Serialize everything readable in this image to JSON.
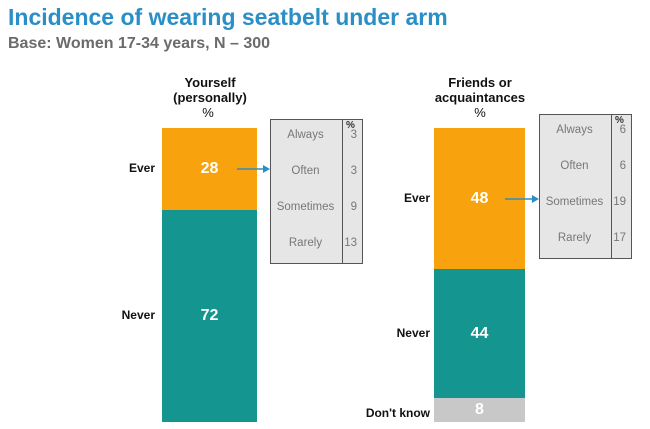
{
  "header": {
    "title": "Incidence of wearing seatbelt under arm",
    "subtitle": "Base: Women 17-34 years, N – 300"
  },
  "colors": {
    "ever": "#f8a30e",
    "never": "#14958f",
    "dont_know": "#c8c8c8",
    "title": "#2a8fc6",
    "arrow": "#2a8fc6"
  },
  "chart_data": [
    {
      "type": "bar",
      "stacked": true,
      "title": "Yourself (personally)",
      "title_lines": [
        "Yourself",
        "(personally)"
      ],
      "unit": "%",
      "categories": [
        "Ever",
        "Never"
      ],
      "values": [
        28,
        72
      ],
      "labels": [
        "28",
        "72"
      ],
      "breakdown": {
        "of": "Ever",
        "unit": "%",
        "categories": [
          "Always",
          "Often",
          "Sometimes",
          "Rarely"
        ],
        "values": [
          3,
          3,
          9,
          13
        ]
      }
    },
    {
      "type": "bar",
      "stacked": true,
      "title": "Friends or acquaintances",
      "title_lines": [
        "Friends or",
        "acquaintances"
      ],
      "unit": "%",
      "categories": [
        "Ever",
        "Never",
        "Don't know"
      ],
      "values": [
        48,
        44,
        8
      ],
      "labels": [
        "48",
        "44",
        "8"
      ],
      "breakdown": {
        "of": "Ever",
        "unit": "%",
        "categories": [
          "Always",
          "Often",
          "Sometimes",
          "Rarely"
        ],
        "values": [
          6,
          6,
          19,
          17
        ]
      }
    }
  ]
}
